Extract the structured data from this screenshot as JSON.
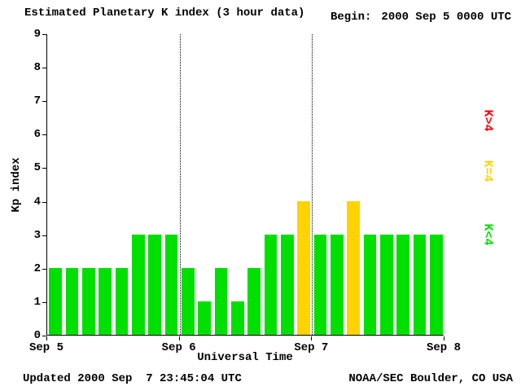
{
  "header": {
    "title": "Estimated Planetary K index (3 hour data)",
    "begin_label": "Begin:",
    "begin_value": "2000 Sep 5 0000 UTC"
  },
  "footer": {
    "updated": "Updated 2000 Sep  7 23:45:04 UTC",
    "credit": "NOAA/SEC Boulder, CO USA"
  },
  "chart_data": {
    "type": "bar",
    "title": "Estimated Planetary K index (3 hour data)",
    "xlabel": "Universal Time",
    "ylabel": "Kp index",
    "ylim": [
      0,
      9
    ],
    "yticks": [
      0,
      1,
      2,
      3,
      4,
      5,
      6,
      7,
      8,
      9
    ],
    "x_days": 3,
    "bars_per_day": 8,
    "xtick_labels": [
      "Sep 5",
      "Sep 6",
      "Sep 7",
      "Sep 8"
    ],
    "values": [
      2,
      2,
      2,
      2,
      2,
      3,
      3,
      3,
      2,
      1,
      2,
      1,
      2,
      3,
      3,
      4,
      3,
      3,
      4,
      3,
      3,
      3,
      3,
      3
    ],
    "bar_colors": {
      "below_4": "#00e000",
      "equal_4": "#ffd300",
      "above_4": "#ff0000"
    },
    "legend": [
      {
        "label": "K>4",
        "color": "#ff0000"
      },
      {
        "label": "K=4",
        "color": "#ffd300"
      },
      {
        "label": "K<4",
        "color": "#00e000"
      }
    ],
    "grid": "dotted vertical lines at day boundaries",
    "legend_position": "right"
  }
}
